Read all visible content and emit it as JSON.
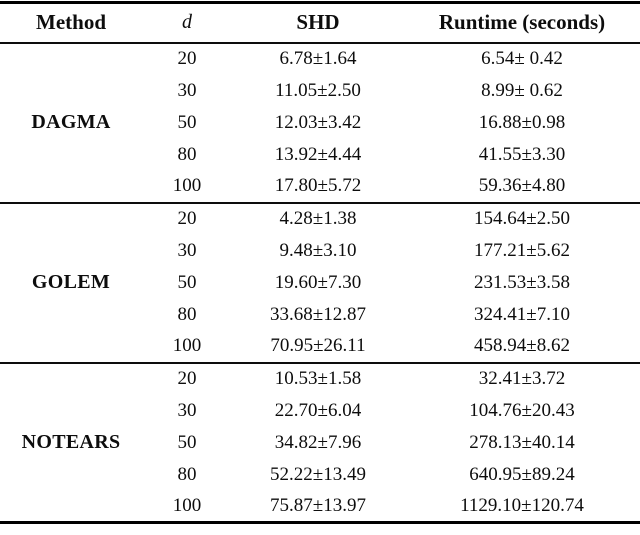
{
  "table": {
    "headers": {
      "method": "Method",
      "d": "d",
      "shd": "SHD",
      "runtime": "Runtime (seconds)"
    },
    "sections": [
      {
        "method": "DAGMA",
        "rows": [
          {
            "d": "20",
            "shd": "6.78±1.64",
            "runtime": "6.54± 0.42"
          },
          {
            "d": "30",
            "shd": "11.05±2.50",
            "runtime": "8.99± 0.62"
          },
          {
            "d": "50",
            "shd": "12.03±3.42",
            "runtime": "16.88±0.98"
          },
          {
            "d": "80",
            "shd": "13.92±4.44",
            "runtime": "41.55±3.30"
          },
          {
            "d": "100",
            "shd": "17.80±5.72",
            "runtime": "59.36±4.80"
          }
        ]
      },
      {
        "method": "GOLEM",
        "rows": [
          {
            "d": "20",
            "shd": "4.28±1.38",
            "runtime": "154.64±2.50"
          },
          {
            "d": "30",
            "shd": "9.48±3.10",
            "runtime": "177.21±5.62"
          },
          {
            "d": "50",
            "shd": "19.60±7.30",
            "runtime": "231.53±3.58"
          },
          {
            "d": "80",
            "shd": "33.68±12.87",
            "runtime": "324.41±7.10"
          },
          {
            "d": "100",
            "shd": "70.95±26.11",
            "runtime": "458.94±8.62"
          }
        ]
      },
      {
        "method": "NOTEARS",
        "rows": [
          {
            "d": "20",
            "shd": "10.53±1.58",
            "runtime": "32.41±3.72"
          },
          {
            "d": "30",
            "shd": "22.70±6.04",
            "runtime": "104.76±20.43"
          },
          {
            "d": "50",
            "shd": "34.82±7.96",
            "runtime": "278.13±40.14"
          },
          {
            "d": "80",
            "shd": "52.22±13.49",
            "runtime": "640.95±89.24"
          },
          {
            "d": "100",
            "shd": "75.87±13.97",
            "runtime": "1129.10±120.74"
          }
        ]
      }
    ]
  }
}
